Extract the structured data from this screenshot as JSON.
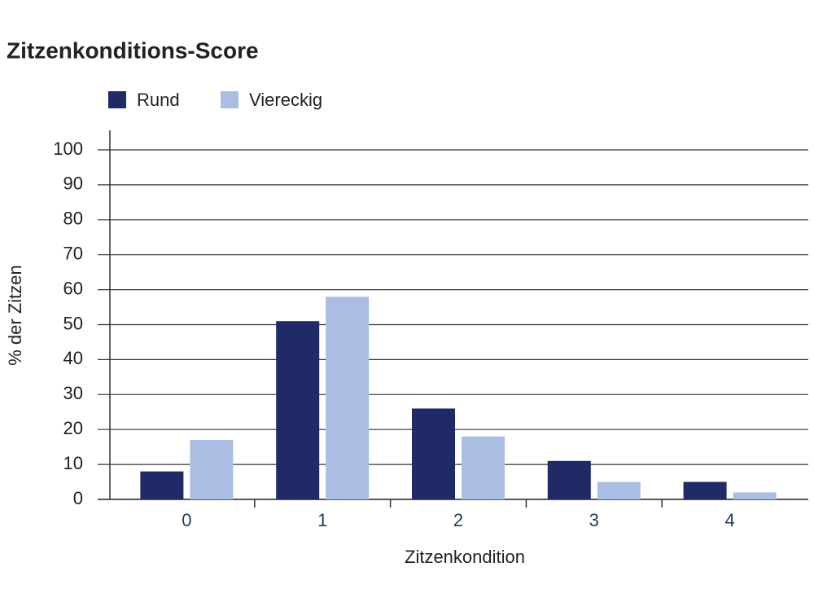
{
  "chart_data": {
    "type": "bar",
    "title": "Zitzenkonditions-Score",
    "x_label": "Zitzenkondition",
    "y_label": "% der Zitzen",
    "categories": [
      "0",
      "1",
      "2",
      "3",
      "4"
    ],
    "series": [
      {
        "name": "Rund",
        "color": "#1f2a66",
        "values": [
          8,
          51,
          26,
          11,
          5
        ]
      },
      {
        "name": "Viereckig",
        "color": "#aabde3",
        "values": [
          17,
          58,
          18,
          5,
          2
        ]
      }
    ],
    "ylim": [
      0,
      100
    ],
    "yticks": [
      0,
      10,
      20,
      30,
      40,
      50,
      60,
      70,
      80,
      90,
      100
    ],
    "grid": true
  }
}
